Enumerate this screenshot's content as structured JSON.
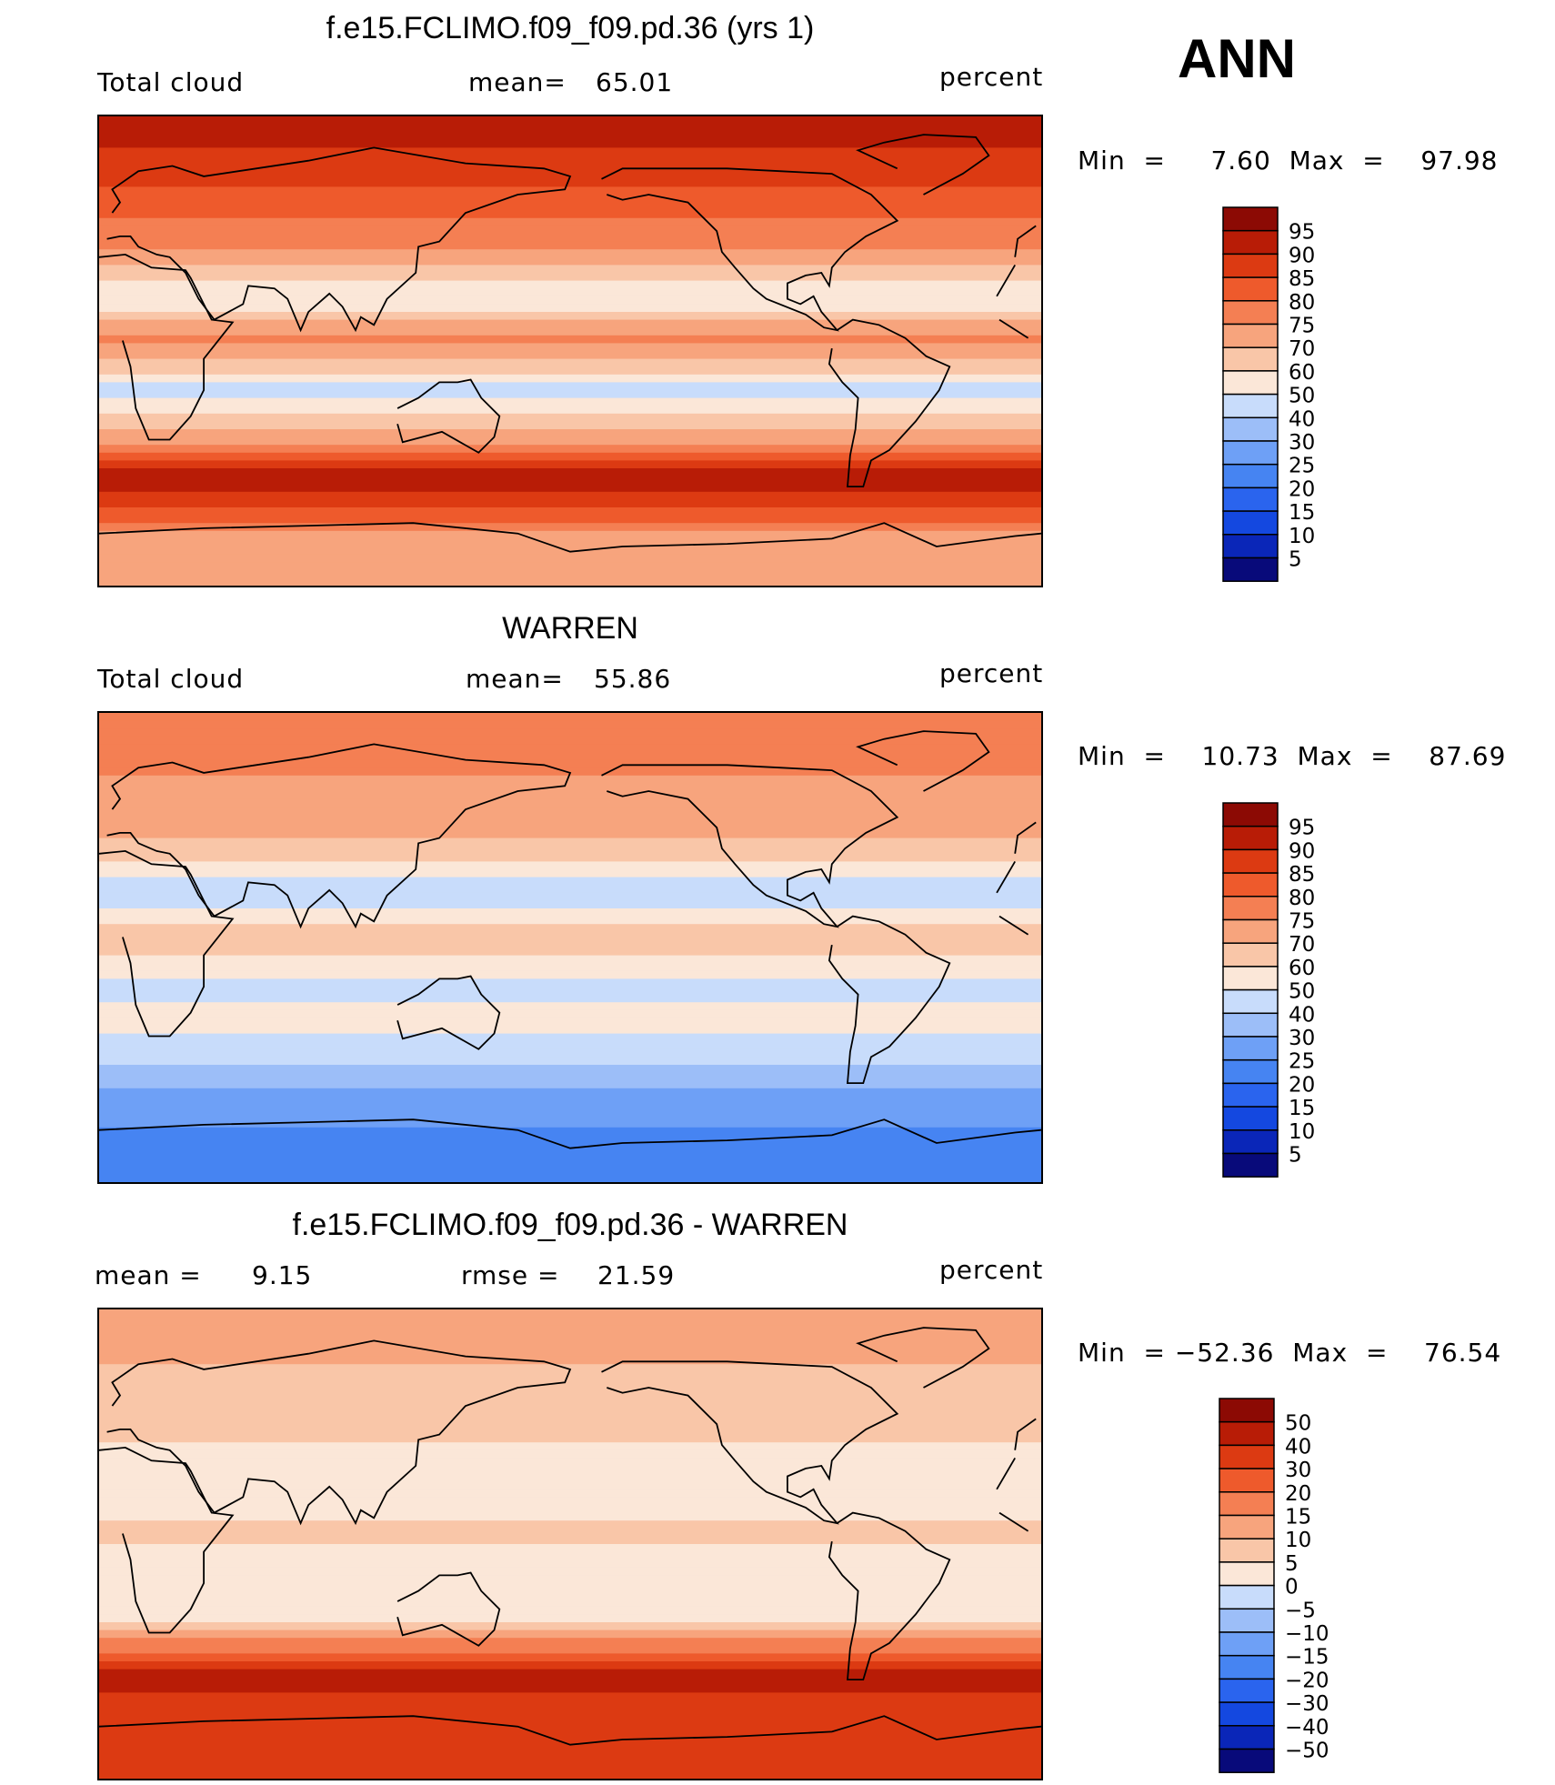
{
  "season": "ANN",
  "colors": {
    "abs_scale": [
      "#080a7a",
      "#0a26b8",
      "#1448e0",
      "#2a64ee",
      "#4684f2",
      "#6ea0f6",
      "#9cbef8",
      "#c8dcfb",
      "#fbe7d8",
      "#f9c6a8",
      "#f7a47d",
      "#f47f53",
      "#ee5a2c",
      "#dc3a12",
      "#b81c06",
      "#8c0a04"
    ],
    "diff_scale": [
      "#080a7a",
      "#0a26b8",
      "#1448e0",
      "#2a64ee",
      "#4684f2",
      "#6ea0f6",
      "#9cbef8",
      "#c8dcfb",
      "#fbe7d8",
      "#f9c6a8",
      "#f7a47d",
      "#f47f53",
      "#ee5a2c",
      "#dc3a12",
      "#b81c06",
      "#8c0a04"
    ],
    "land_outline": "#000000"
  },
  "chart_data": [
    {
      "type": "heatmap",
      "title": "f.e15.FCLIMO.f09_f09.pd.36 (yrs 1)",
      "variable": "Total cloud",
      "mean_label": "mean=",
      "mean": "65.01",
      "units": "percent",
      "min_max_label": "Min  =     7.60  Max  =    97.98",
      "min": 7.6,
      "max": 97.98,
      "colorbar_levels": [
        "95",
        "90",
        "85",
        "80",
        "75",
        "70",
        "60",
        "50",
        "40",
        "30",
        "25",
        "20",
        "15",
        "10",
        "5"
      ],
      "zonal_mean_profile": [
        {
          "lat": 80,
          "value": 88
        },
        {
          "lat": 60,
          "value": 80
        },
        {
          "lat": 40,
          "value": 70
        },
        {
          "lat": 20,
          "value": 50
        },
        {
          "lat": 5,
          "value": 72
        },
        {
          "lat": -15,
          "value": 48
        },
        {
          "lat": -30,
          "value": 60
        },
        {
          "lat": -50,
          "value": 94
        },
        {
          "lat": -70,
          "value": 68
        }
      ]
    },
    {
      "type": "heatmap",
      "title": "WARREN",
      "variable": "Total cloud",
      "mean_label": "mean=",
      "mean": "55.86",
      "units": "percent",
      "min_max_label": "Min  =    10.73  Max  =    87.69",
      "min": 10.73,
      "max": 87.69,
      "colorbar_levels": [
        "95",
        "90",
        "85",
        "80",
        "75",
        "70",
        "60",
        "50",
        "40",
        "30",
        "25",
        "20",
        "15",
        "10",
        "5"
      ],
      "zonal_mean_profile": [
        {
          "lat": 80,
          "value": 70
        },
        {
          "lat": 60,
          "value": 68
        },
        {
          "lat": 40,
          "value": 62
        },
        {
          "lat": 20,
          "value": 45
        },
        {
          "lat": 5,
          "value": 62
        },
        {
          "lat": -15,
          "value": 48
        },
        {
          "lat": -30,
          "value": 52
        },
        {
          "lat": -50,
          "value": 40
        },
        {
          "lat": -70,
          "value": 30
        }
      ]
    },
    {
      "type": "heatmap",
      "title": "f.e15.FCLIMO.f09_f09.pd.36 - WARREN",
      "variable": "",
      "mean_label": "mean  =",
      "mean": "9.15",
      "rmse_label": "rmse  =",
      "rmse": "21.59",
      "units": "percent",
      "min_max_label": "Min  = −52.36  Max  =    76.54",
      "min": -52.36,
      "max": 76.54,
      "colorbar_levels": [
        "50",
        "40",
        "30",
        "20",
        "15",
        "10",
        "5",
        "0",
        "−5",
        "−10",
        "−15",
        "−20",
        "−30",
        "−40",
        "−50"
      ],
      "zonal_mean_profile": [
        {
          "lat": 80,
          "value": 18
        },
        {
          "lat": 60,
          "value": 12
        },
        {
          "lat": 40,
          "value": 8
        },
        {
          "lat": 20,
          "value": 2
        },
        {
          "lat": 5,
          "value": 10
        },
        {
          "lat": -15,
          "value": 0
        },
        {
          "lat": -30,
          "value": 6
        },
        {
          "lat": -50,
          "value": 50
        },
        {
          "lat": -70,
          "value": 38
        }
      ]
    }
  ]
}
